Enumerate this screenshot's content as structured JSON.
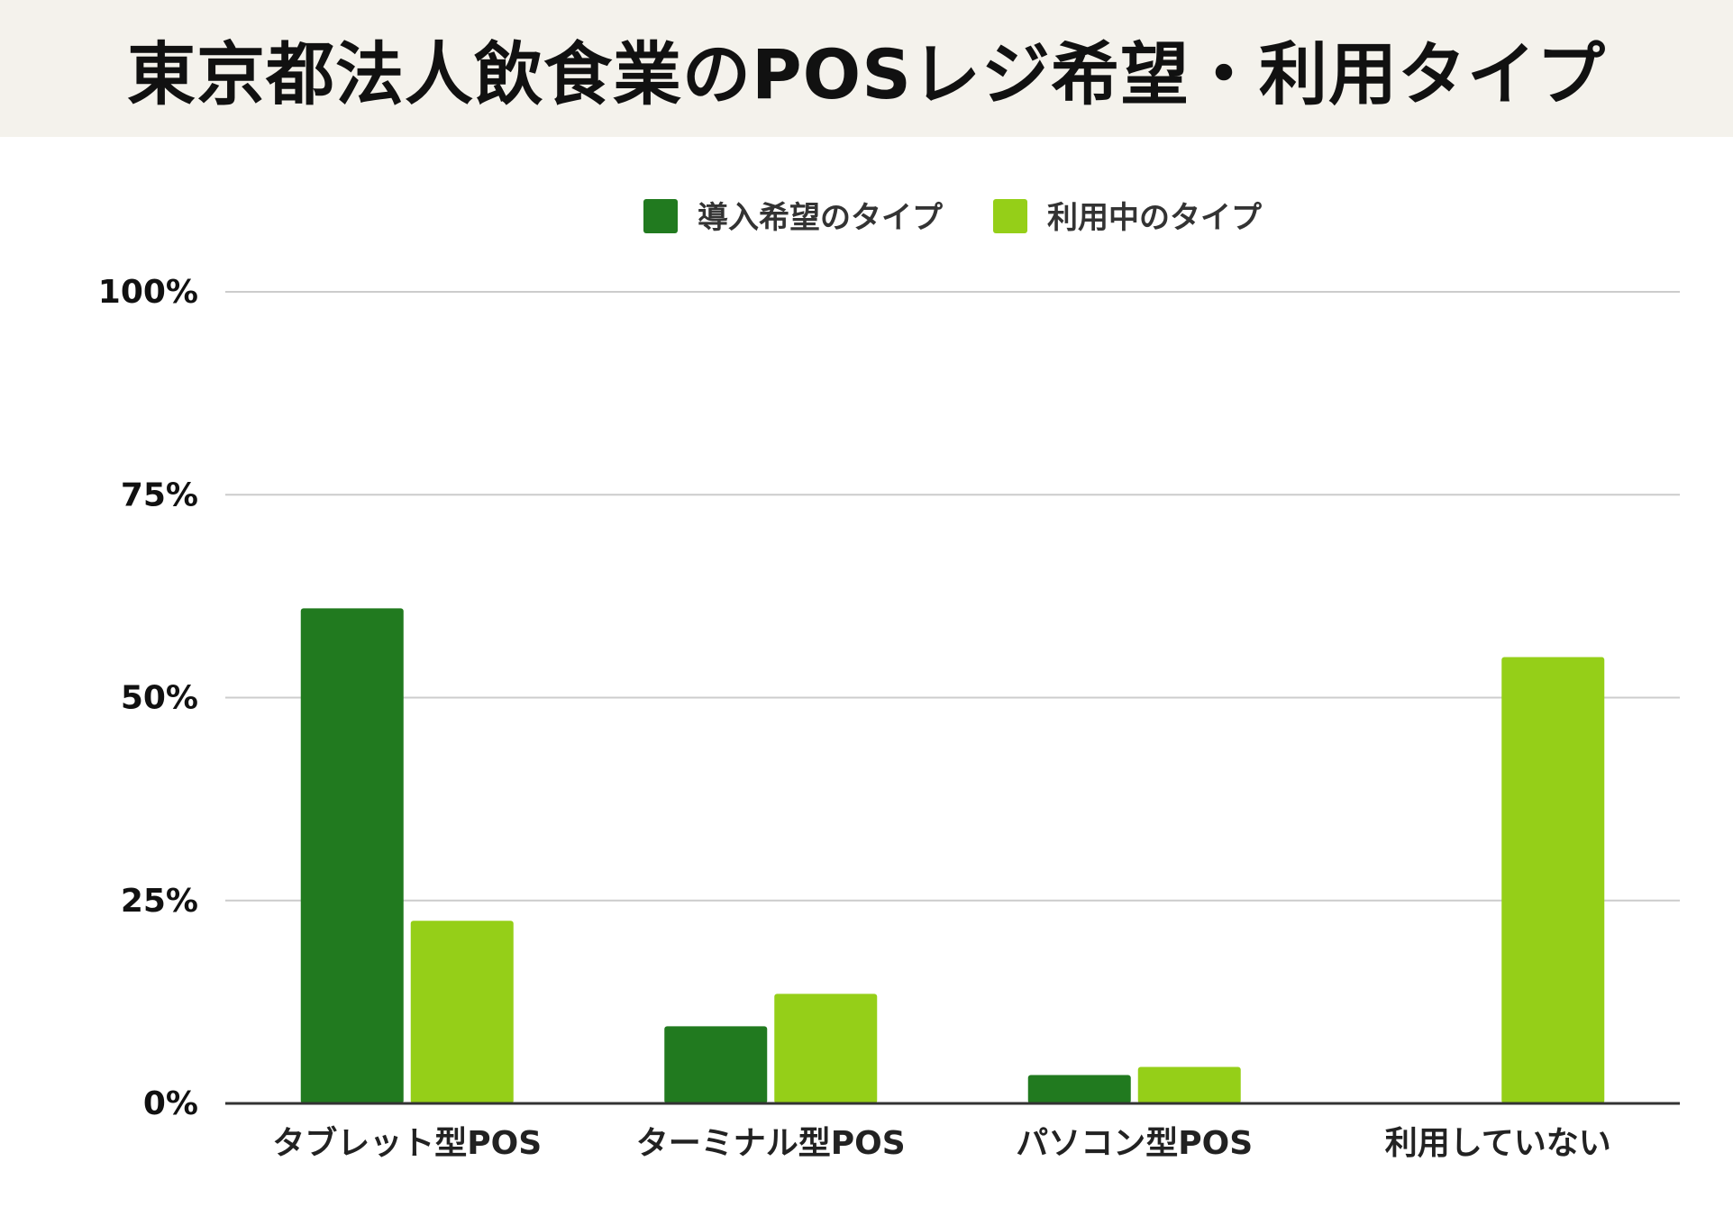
{
  "header": {
    "title": "東京都法人飲食業のPOSレジ希望・利用タイプ"
  },
  "colors": {
    "series_1": "#217a1f",
    "series_2": "#95cf18",
    "grid": "#cccccc",
    "axis": "#333333",
    "title_background": "#f4f2ec"
  },
  "chart_data": {
    "type": "bar",
    "title": "東京都法人飲食業のPOSレジ希望・利用タイプ",
    "categories": [
      "タブレット型POS",
      "ターミナル型POS",
      "パソコン型POS",
      "利用していない"
    ],
    "series": [
      {
        "name": "導入希望のタイプ",
        "values": [
          61,
          9.5,
          3.5,
          0
        ]
      },
      {
        "name": "利用中のタイプ",
        "values": [
          22.5,
          13.5,
          4.5,
          55
        ]
      }
    ],
    "ylim": [
      0,
      100
    ],
    "yticks": [
      0,
      25,
      50,
      75,
      100
    ],
    "ytick_labels": [
      "0%",
      "25%",
      "50%",
      "75%",
      "100%"
    ],
    "xlabel": "",
    "ylabel": "",
    "grid": true,
    "legend_position": "top-center"
  }
}
